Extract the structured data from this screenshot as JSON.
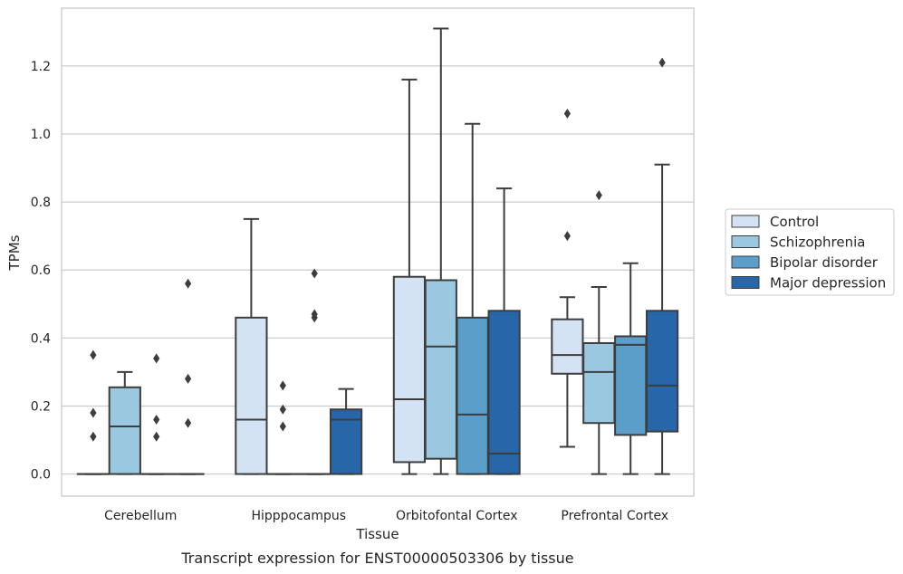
{
  "chart_data": {
    "type": "box",
    "caption": "Transcript expression for ENST00000503306 by tissue",
    "xlabel": "Tissue",
    "ylabel": "TPMs",
    "ylim": [
      -0.065,
      1.37
    ],
    "yticks": [
      0.0,
      0.2,
      0.4,
      0.6,
      0.8,
      1.0,
      1.2
    ],
    "ytick_labels": [
      "0.0",
      "0.2",
      "0.4",
      "0.6",
      "0.8",
      "1.0",
      "1.2"
    ],
    "grid": "horizontal",
    "legend_position": "right",
    "categories": [
      "Cerebellum",
      "Hipppocampus",
      "Orbitofontal Cortex",
      "Prefrontal Cortex"
    ],
    "series": [
      {
        "name": "Control",
        "color": "#d3e3f3",
        "boxes": [
          {
            "whislo": 0.0,
            "q1": 0.0,
            "med": 0.0,
            "q3": 0.0,
            "whishi": 0.0,
            "fliers": [
              0.35,
              0.18,
              0.11
            ]
          },
          {
            "whislo": 0.0,
            "q1": 0.0,
            "med": 0.16,
            "q3": 0.46,
            "whishi": 0.75,
            "fliers": []
          },
          {
            "whislo": 0.0,
            "q1": 0.035,
            "med": 0.22,
            "q3": 0.58,
            "whishi": 1.16,
            "fliers": []
          },
          {
            "whislo": 0.08,
            "q1": 0.295,
            "med": 0.35,
            "q3": 0.455,
            "whishi": 0.52,
            "fliers": [
              1.06,
              0.7
            ]
          }
        ]
      },
      {
        "name": "Schizophrenia",
        "color": "#9ac8e0",
        "boxes": [
          {
            "whislo": 0.0,
            "q1": 0.0,
            "med": 0.14,
            "q3": 0.255,
            "whishi": 0.3,
            "fliers": []
          },
          {
            "whislo": 0.0,
            "q1": 0.0,
            "med": 0.0,
            "q3": 0.0,
            "whishi": 0.0,
            "fliers": [
              0.26,
              0.19,
              0.14
            ]
          },
          {
            "whislo": 0.0,
            "q1": 0.045,
            "med": 0.375,
            "q3": 0.57,
            "whishi": 1.31,
            "fliers": []
          },
          {
            "whislo": 0.0,
            "q1": 0.15,
            "med": 0.3,
            "q3": 0.385,
            "whishi": 0.55,
            "fliers": [
              0.82
            ]
          }
        ]
      },
      {
        "name": "Bipolar disorder",
        "color": "#5a9ec9",
        "boxes": [
          {
            "whislo": 0.0,
            "q1": 0.0,
            "med": 0.0,
            "q3": 0.0,
            "whishi": 0.0,
            "fliers": [
              0.34,
              0.16,
              0.11
            ]
          },
          {
            "whislo": 0.0,
            "q1": 0.0,
            "med": 0.0,
            "q3": 0.0,
            "whishi": 0.0,
            "fliers": [
              0.59,
              0.47,
              0.46
            ]
          },
          {
            "whislo": 0.0,
            "q1": 0.0,
            "med": 0.175,
            "q3": 0.46,
            "whishi": 1.03,
            "fliers": []
          },
          {
            "whislo": 0.0,
            "q1": 0.115,
            "med": 0.38,
            "q3": 0.405,
            "whishi": 0.62,
            "fliers": []
          }
        ]
      },
      {
        "name": "Major depression",
        "color": "#2666a9",
        "boxes": [
          {
            "whislo": 0.0,
            "q1": 0.0,
            "med": 0.0,
            "q3": 0.0,
            "whishi": 0.0,
            "fliers": [
              0.56,
              0.28,
              0.15
            ]
          },
          {
            "whislo": 0.0,
            "q1": 0.0,
            "med": 0.16,
            "q3": 0.19,
            "whishi": 0.25,
            "fliers": []
          },
          {
            "whislo": 0.0,
            "q1": 0.0,
            "med": 0.06,
            "q3": 0.48,
            "whishi": 0.84,
            "fliers": []
          },
          {
            "whislo": 0.0,
            "q1": 0.125,
            "med": 0.26,
            "q3": 0.48,
            "whishi": 0.91,
            "fliers": [
              1.21
            ]
          }
        ]
      }
    ]
  }
}
